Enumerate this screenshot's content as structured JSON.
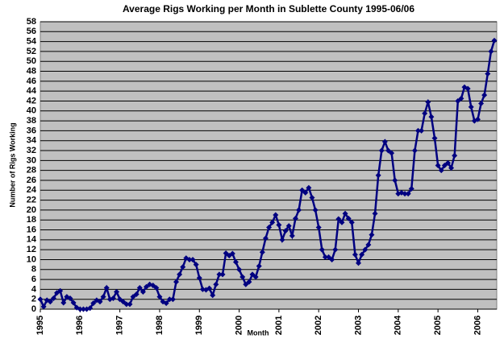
{
  "chart_data": {
    "type": "line",
    "title": "Average Rigs Working per Month in Sublette County 1995-06/06",
    "x_label": "Month",
    "y_label": "Number of Rigs Working",
    "categories": [
      "1995",
      null,
      null,
      null,
      null,
      null,
      null,
      null,
      null,
      null,
      null,
      null,
      "1996",
      null,
      null,
      null,
      null,
      null,
      null,
      null,
      null,
      null,
      null,
      null,
      "1997",
      null,
      null,
      null,
      null,
      null,
      null,
      null,
      null,
      null,
      null,
      null,
      "1998",
      null,
      null,
      null,
      null,
      null,
      null,
      null,
      null,
      null,
      null,
      null,
      "1999",
      null,
      null,
      null,
      null,
      null,
      null,
      null,
      null,
      null,
      null,
      null,
      "2000",
      null,
      null,
      null,
      null,
      null,
      null,
      null,
      null,
      null,
      null,
      null,
      "2001",
      null,
      null,
      null,
      null,
      null,
      null,
      null,
      null,
      null,
      null,
      null,
      "2002",
      null,
      null,
      null,
      null,
      null,
      null,
      null,
      null,
      null,
      null,
      null,
      "2003",
      null,
      null,
      null,
      null,
      null,
      null,
      null,
      null,
      null,
      null,
      null,
      "2004",
      null,
      null,
      null,
      null,
      null,
      null,
      null,
      null,
      null,
      null,
      null,
      "2005",
      null,
      null,
      null,
      null,
      null,
      null,
      null,
      null,
      null,
      null,
      null,
      "2006",
      null,
      null,
      null,
      null,
      null
    ],
    "values": [
      2,
      0.5,
      1.8,
      1.5,
      2.2,
      3.3,
      3.7,
      1.3,
      2.5,
      2.2,
      1.3,
      0.3,
      0,
      0,
      0,
      0.2,
      1.2,
      1.8,
      1.5,
      2.5,
      4.3,
      2,
      2.2,
      3.5,
      2,
      1.5,
      1,
      1,
      2.5,
      3,
      4.3,
      3.5,
      4.5,
      5,
      4.8,
      4.3,
      2.5,
      1.5,
      1.2,
      2,
      2,
      5.5,
      7,
      8.5,
      10.3,
      10,
      10,
      9,
      6.3,
      4,
      3.9,
      4.2,
      2.8,
      5,
      7,
      7,
      11.3,
      10.8,
      11.2,
      9.5,
      8,
      6.5,
      5,
      5.5,
      7,
      6.5,
      8.7,
      11.5,
      14.3,
      16.5,
      17.5,
      19,
      17,
      14,
      15.8,
      16.8,
      14.8,
      18.3,
      20,
      24,
      23.5,
      24.5,
      22.5,
      20,
      16.5,
      12,
      10.5,
      10.5,
      10,
      12,
      18.2,
      17.5,
      19.3,
      18.3,
      17.5,
      11,
      9.3,
      11,
      12,
      13,
      15,
      19.3,
      27,
      32,
      33.8,
      32,
      31.5,
      26,
      23.3,
      23.5,
      23.3,
      23.3,
      24.3,
      32,
      36,
      36,
      39.5,
      41.8,
      38.8,
      34.5,
      29,
      28,
      29,
      29.5,
      28.5,
      31,
      42,
      42.5,
      44.8,
      44.5,
      40.8,
      38,
      38.3,
      41.5,
      43.2,
      47.5,
      52,
      54.2
    ],
    "color": "#000080",
    "background": "#c0c0c0",
    "grid": true,
    "ylim": [
      0,
      58
    ],
    "yticks": [
      0,
      2,
      4,
      6,
      8,
      10,
      12,
      14,
      16,
      18,
      20,
      22,
      24,
      26,
      28,
      30,
      32,
      34,
      36,
      38,
      40,
      42,
      44,
      46,
      48,
      50,
      52,
      54,
      56,
      58
    ]
  }
}
